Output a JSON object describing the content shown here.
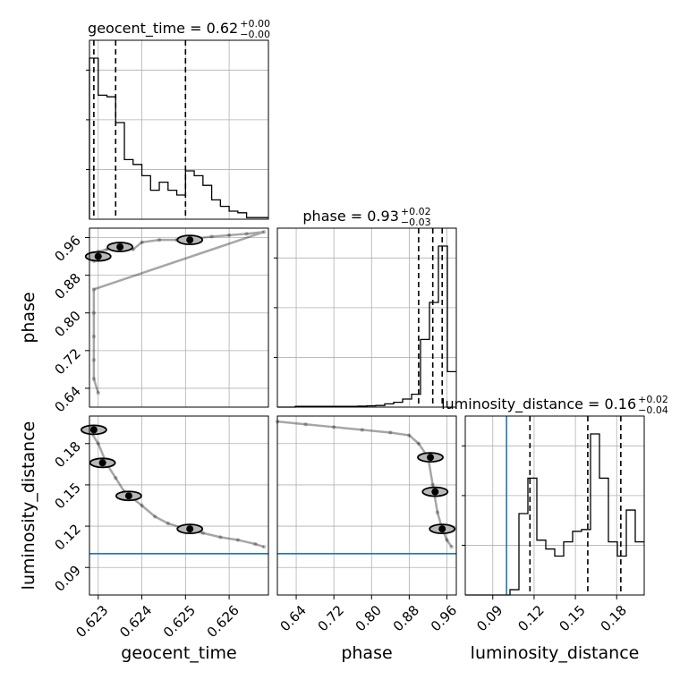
{
  "chart_data": {
    "type": "corner",
    "parameters": [
      "geocent_time",
      "phase",
      "luminosity_distance"
    ],
    "axes": {
      "geocent_time": {
        "range": [
          0.6228,
          0.6269
        ],
        "ticks": [
          0.623,
          0.624,
          0.625,
          0.626
        ],
        "tick_labels": [
          "0.623",
          "0.624",
          "0.625",
          "0.626"
        ]
      },
      "phase": {
        "range": [
          0.6,
          0.98
        ],
        "ticks": [
          0.64,
          0.72,
          0.8,
          0.88,
          0.96
        ],
        "tick_labels": [
          "0.64",
          "0.72",
          "0.80",
          "0.88",
          "0.96"
        ]
      },
      "luminosity_distance": {
        "range": [
          0.07,
          0.2
        ],
        "ticks": [
          0.09,
          0.12,
          0.15,
          0.18
        ],
        "tick_labels": [
          "0.09",
          "0.12",
          "0.15",
          "0.18"
        ]
      }
    },
    "titles": [
      {
        "param": "geocent_time",
        "text": "geocent_time = 0.62",
        "plus": "+0.00",
        "minus": "−0.00"
      },
      {
        "param": "phase",
        "text": "phase = 0.93",
        "plus": "+0.02",
        "minus": "−0.03"
      },
      {
        "param": "luminosity_distance",
        "text": "luminosity_distance = 0.16",
        "plus": "+0.02",
        "minus": "−0.04"
      }
    ],
    "histograms": [
      {
        "param": "geocent_time",
        "bin_edges": [
          0.6228,
          0.623,
          0.6232,
          0.6234,
          0.6236,
          0.6238,
          0.624,
          0.6242,
          0.6244,
          0.6246,
          0.6248,
          0.625,
          0.6252,
          0.6254,
          0.6256,
          0.6258,
          0.626,
          0.6262,
          0.6264,
          0.6266,
          0.6269
        ],
        "counts": [
          1.0,
          0.77,
          0.76,
          0.6,
          0.37,
          0.34,
          0.27,
          0.18,
          0.23,
          0.18,
          0.15,
          0.3,
          0.27,
          0.21,
          0.12,
          0.08,
          0.05,
          0.04,
          0.01,
          0.01
        ],
        "quantiles": [
          0.6229,
          0.6234,
          0.625
        ]
      },
      {
        "param": "phase",
        "bin_edges": [
          0.6,
          0.619,
          0.638,
          0.657,
          0.676,
          0.695,
          0.714,
          0.733,
          0.752,
          0.771,
          0.79,
          0.809,
          0.828,
          0.847,
          0.866,
          0.885,
          0.904,
          0.923,
          0.942,
          0.961,
          0.98
        ],
        "counts": [
          0.0,
          0.0,
          0.005,
          0.005,
          0.005,
          0.005,
          0.005,
          0.005,
          0.005,
          0.006,
          0.008,
          0.01,
          0.02,
          0.03,
          0.05,
          0.08,
          0.42,
          0.65,
          1.0,
          0.22
        ],
        "quantiles": [
          0.9,
          0.93,
          0.95
        ]
      },
      {
        "param": "luminosity_distance",
        "bin_edges": [
          0.07,
          0.0765,
          0.083,
          0.0895,
          0.096,
          0.1025,
          0.109,
          0.1155,
          0.122,
          0.1285,
          0.135,
          0.1415,
          0.148,
          0.1545,
          0.161,
          0.1675,
          0.174,
          0.1805,
          0.187,
          0.1935,
          0.2
        ],
        "counts": [
          0.0,
          0.0,
          0.0,
          0.0,
          0.0,
          0.03,
          0.46,
          0.66,
          0.31,
          0.26,
          0.22,
          0.3,
          0.36,
          0.37,
          0.91,
          0.66,
          0.3,
          0.22,
          0.48,
          0.3
        ],
        "quantiles": [
          0.117,
          0.159,
          0.183
        ]
      }
    ],
    "truths": {
      "luminosity_distance": 0.1
    },
    "scatter": [
      {
        "x": "geocent_time",
        "y": "phase",
        "samples": [
          [
            0.6229,
            0.91
          ],
          [
            0.623,
            0.93
          ],
          [
            0.6232,
            0.935
          ],
          [
            0.6234,
            0.945
          ],
          [
            0.6236,
            0.94
          ],
          [
            0.6238,
            0.935
          ],
          [
            0.624,
            0.95
          ],
          [
            0.6244,
            0.955
          ],
          [
            0.6248,
            0.955
          ],
          [
            0.6252,
            0.958
          ],
          [
            0.6256,
            0.962
          ],
          [
            0.626,
            0.965
          ],
          [
            0.6264,
            0.968
          ],
          [
            0.6268,
            0.972
          ],
          [
            0.6229,
            0.85
          ],
          [
            0.6229,
            0.8
          ],
          [
            0.6229,
            0.75
          ],
          [
            0.6229,
            0.7
          ],
          [
            0.6229,
            0.66
          ],
          [
            0.623,
            0.63
          ]
        ],
        "density_peaks": [
          [
            0.623,
            0.92
          ],
          [
            0.6235,
            0.94
          ],
          [
            0.6251,
            0.955
          ]
        ]
      },
      {
        "x": "geocent_time",
        "y": "luminosity_distance",
        "samples": [
          [
            0.6228,
            0.19
          ],
          [
            0.623,
            0.18
          ],
          [
            0.6232,
            0.165
          ],
          [
            0.6234,
            0.155
          ],
          [
            0.6236,
            0.145
          ],
          [
            0.6238,
            0.14
          ],
          [
            0.624,
            0.135
          ],
          [
            0.6243,
            0.127
          ],
          [
            0.6246,
            0.122
          ],
          [
            0.625,
            0.118
          ],
          [
            0.6254,
            0.115
          ],
          [
            0.6258,
            0.112
          ],
          [
            0.6262,
            0.11
          ],
          [
            0.6266,
            0.107
          ],
          [
            0.6268,
            0.105
          ]
        ],
        "density_peaks": [
          [
            0.6229,
            0.19
          ],
          [
            0.6231,
            0.166
          ],
          [
            0.6237,
            0.142
          ],
          [
            0.6251,
            0.118
          ]
        ]
      },
      {
        "x": "phase",
        "y": "luminosity_distance",
        "samples": [
          [
            0.6,
            0.196
          ],
          [
            0.66,
            0.194
          ],
          [
            0.72,
            0.192
          ],
          [
            0.78,
            0.19
          ],
          [
            0.84,
            0.188
          ],
          [
            0.88,
            0.186
          ],
          [
            0.9,
            0.18
          ],
          [
            0.92,
            0.17
          ],
          [
            0.93,
            0.15
          ],
          [
            0.94,
            0.13
          ],
          [
            0.95,
            0.118
          ],
          [
            0.96,
            0.11
          ],
          [
            0.97,
            0.105
          ]
        ],
        "density_peaks": [
          [
            0.925,
            0.17
          ],
          [
            0.935,
            0.145
          ],
          [
            0.95,
            0.118
          ]
        ]
      }
    ]
  }
}
